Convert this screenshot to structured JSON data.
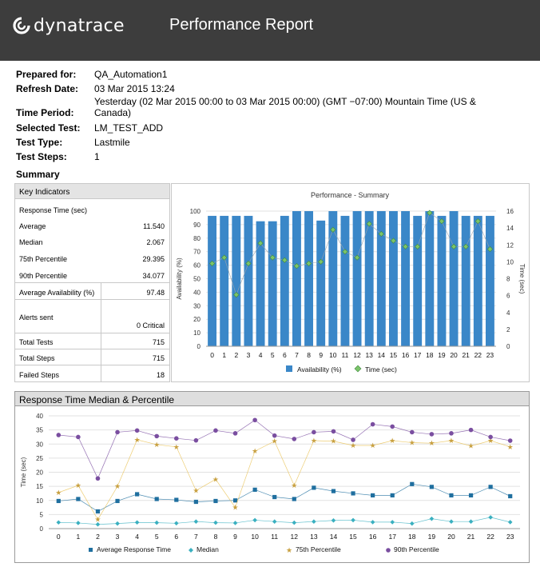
{
  "header": {
    "logo_text": "dynatrace",
    "title": "Performance Report",
    "bg_color": "#3d3d3d"
  },
  "meta": {
    "prepared_for_label": "Prepared for:",
    "prepared_for": "QA_Automation1",
    "refresh_label": "Refresh Date:",
    "refresh_date": "03 Mar 2015 13:24",
    "period_label": "Time Period:",
    "period": "Yesterday  (02 Mar 2015 00:00 to 03 Mar 2015 00:00)  (GMT −07:00) Mountain Time (US & Canada)",
    "test_label": "Selected Test:",
    "test": "LM_TEST_ADD",
    "type_label": "Test Type:",
    "type": "Lastmile",
    "steps_label": "Test Steps:",
    "steps": "1"
  },
  "summary_title": "Summary",
  "key_indicators": {
    "title": "Key Indicators",
    "response_label": "Response Time (sec)",
    "average_label": "Average",
    "average": "11.540",
    "median_label": "Median",
    "median": "2.067",
    "p75_label": "75th Percentile",
    "p75": "29.395",
    "p90_label": "90th Percentile",
    "p90": "34.077",
    "availability_label": "Average Availability (%)",
    "availability": "97.48",
    "alerts_label": "Alerts sent",
    "alerts": "0 Critical",
    "total_tests_label": "Total Tests",
    "total_tests": "715",
    "total_steps_label": "Total Steps",
    "total_steps": "715",
    "failed_steps_label": "Failed Steps",
    "failed_steps": "18"
  },
  "response_panel_title": "Response Time Median & Percentile",
  "chart_data": [
    {
      "type": "bar",
      "title": "Performance - Summary",
      "categories": [
        "0",
        "1",
        "2",
        "3",
        "4",
        "5",
        "6",
        "7",
        "8",
        "9",
        "10",
        "11",
        "12",
        "13",
        "14",
        "15",
        "16",
        "17",
        "18",
        "19",
        "20",
        "21",
        "22",
        "23"
      ],
      "ylabel": "Availability (%)",
      "y2label": "Time (sec)",
      "ylim": [
        0,
        100
      ],
      "y2lim": [
        0,
        16
      ],
      "yticks": [
        "0",
        "10",
        "20",
        "30",
        "40",
        "50",
        "60",
        "70",
        "80",
        "90",
        "100"
      ],
      "y2ticks": [
        "0",
        "2",
        "4",
        "6",
        "8",
        "10",
        "12",
        "14",
        "16"
      ],
      "series": [
        {
          "name": "Availability (%)",
          "type": "bar",
          "color": "#3a87c8",
          "values": [
            96.5,
            96.5,
            96.5,
            96.5,
            92.5,
            92.5,
            96.5,
            100,
            100,
            93,
            100,
            96.5,
            100,
            100,
            100,
            100,
            100,
            96.5,
            100,
            96.5,
            100,
            96.5,
            96.5,
            96.5
          ]
        },
        {
          "name": "Time (sec)",
          "type": "line",
          "axis": "right",
          "color": "#4aa84a",
          "values": [
            9.8,
            10.5,
            6.1,
            9.8,
            12.2,
            10.5,
            10.2,
            9.5,
            9.8,
            10.0,
            13.8,
            11.2,
            10.5,
            14.5,
            13.3,
            12.5,
            11.8,
            11.8,
            15.8,
            14.8,
            11.8,
            11.8,
            14.8,
            11.5
          ]
        }
      ],
      "legend": "bottom"
    },
    {
      "type": "line",
      "title": "Response Time Median & Percentile",
      "categories": [
        "0",
        "1",
        "2",
        "3",
        "4",
        "5",
        "6",
        "7",
        "8",
        "9",
        "10",
        "11",
        "12",
        "13",
        "14",
        "15",
        "16",
        "17",
        "18",
        "19",
        "20",
        "21",
        "22",
        "23"
      ],
      "ylabel": "Time (sec)",
      "ylim": [
        0,
        40
      ],
      "yticks": [
        "0",
        "5",
        "10",
        "15",
        "20",
        "25",
        "30",
        "35",
        "40"
      ],
      "series": [
        {
          "name": "Average Response Time",
          "color": "#1f6f9f",
          "marker": "square",
          "values": [
            9.8,
            10.5,
            6.1,
            9.8,
            12.2,
            10.5,
            10.2,
            9.5,
            9.8,
            10.0,
            13.8,
            11.2,
            10.5,
            14.5,
            13.3,
            12.5,
            11.8,
            11.8,
            15.8,
            14.8,
            11.8,
            11.8,
            14.8,
            11.5
          ]
        },
        {
          "name": "Median",
          "color": "#3ab0c0",
          "marker": "diamond",
          "values": [
            2.2,
            2.0,
            1.5,
            1.8,
            2.2,
            2.1,
            1.9,
            2.5,
            2.1,
            2.0,
            3.0,
            2.5,
            2.1,
            2.5,
            2.9,
            3.0,
            2.3,
            2.3,
            1.8,
            3.5,
            2.5,
            2.5,
            4.0,
            2.3
          ]
        },
        {
          "name": "75th Percentile",
          "color": "#e8c050",
          "marker": "star",
          "values": [
            12.8,
            15.3,
            3.2,
            15.0,
            31.5,
            29.8,
            29.0,
            13.5,
            17.5,
            7.5,
            27.5,
            31.0,
            15.3,
            31.2,
            31.0,
            29.5,
            29.5,
            31.2,
            30.5,
            30.3,
            31.2,
            29.3,
            31.2,
            29.0
          ]
        },
        {
          "name": "90th Percentile",
          "color": "#7a4ea0",
          "marker": "circle",
          "values": [
            33.2,
            32.5,
            17.8,
            34.2,
            34.8,
            32.8,
            32.0,
            31.3,
            34.8,
            33.8,
            38.5,
            33.0,
            31.8,
            34.2,
            34.5,
            31.5,
            37.0,
            36.2,
            34.2,
            33.5,
            33.8,
            35.0,
            32.5,
            31.2
          ]
        }
      ],
      "legend": "bottom"
    }
  ]
}
